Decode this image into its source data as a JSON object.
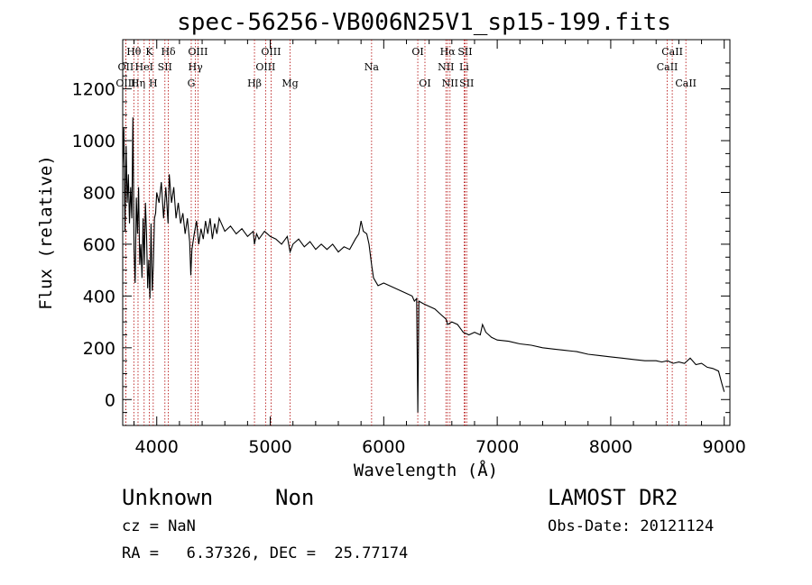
{
  "chart_data": {
    "type": "line",
    "title": "spec-56256-VB006N25V1_sp15-199.fits",
    "xlabel": "Wavelength (Å)",
    "ylabel": "Flux (relative)",
    "xlim": [
      3700,
      9050
    ],
    "ylim": [
      -100,
      1390
    ],
    "xticks": [
      4000,
      5000,
      6000,
      7000,
      8000,
      9000
    ],
    "yticks": [
      0,
      200,
      400,
      600,
      800,
      1000,
      1200
    ],
    "grid": false,
    "series": [
      {
        "values": [
          [
            3700,
            900
          ],
          [
            3710,
            1050
          ],
          [
            3720,
            650
          ],
          [
            3730,
            980
          ],
          [
            3740,
            760
          ],
          [
            3750,
            870
          ],
          [
            3760,
            680
          ],
          [
            3770,
            820
          ],
          [
            3780,
            700
          ],
          [
            3790,
            1090
          ],
          [
            3800,
            580
          ],
          [
            3810,
            450
          ],
          [
            3820,
            780
          ],
          [
            3830,
            640
          ],
          [
            3840,
            820
          ],
          [
            3850,
            520
          ],
          [
            3860,
            600
          ],
          [
            3870,
            470
          ],
          [
            3880,
            700
          ],
          [
            3890,
            520
          ],
          [
            3900,
            760
          ],
          [
            3910,
            640
          ],
          [
            3920,
            430
          ],
          [
            3930,
            540
          ],
          [
            3940,
            390
          ],
          [
            3950,
            680
          ],
          [
            3960,
            420
          ],
          [
            3970,
            520
          ],
          [
            3980,
            700
          ],
          [
            3990,
            720
          ],
          [
            4000,
            800
          ],
          [
            4020,
            760
          ],
          [
            4040,
            840
          ],
          [
            4060,
            700
          ],
          [
            4080,
            820
          ],
          [
            4100,
            680
          ],
          [
            4110,
            870
          ],
          [
            4130,
            760
          ],
          [
            4150,
            820
          ],
          [
            4170,
            700
          ],
          [
            4190,
            760
          ],
          [
            4210,
            680
          ],
          [
            4230,
            720
          ],
          [
            4250,
            640
          ],
          [
            4270,
            700
          ],
          [
            4290,
            610
          ],
          [
            4300,
            480
          ],
          [
            4310,
            580
          ],
          [
            4330,
            640
          ],
          [
            4350,
            690
          ],
          [
            4370,
            600
          ],
          [
            4390,
            660
          ],
          [
            4410,
            620
          ],
          [
            4430,
            690
          ],
          [
            4450,
            640
          ],
          [
            4470,
            700
          ],
          [
            4490,
            620
          ],
          [
            4510,
            680
          ],
          [
            4530,
            640
          ],
          [
            4550,
            700
          ],
          [
            4600,
            650
          ],
          [
            4650,
            670
          ],
          [
            4700,
            640
          ],
          [
            4750,
            660
          ],
          [
            4800,
            630
          ],
          [
            4850,
            650
          ],
          [
            4861,
            600
          ],
          [
            4880,
            640
          ],
          [
            4900,
            620
          ],
          [
            4950,
            650
          ],
          [
            5000,
            630
          ],
          [
            5050,
            620
          ],
          [
            5100,
            600
          ],
          [
            5150,
            630
          ],
          [
            5175,
            570
          ],
          [
            5200,
            600
          ],
          [
            5250,
            620
          ],
          [
            5300,
            590
          ],
          [
            5350,
            610
          ],
          [
            5400,
            580
          ],
          [
            5450,
            600
          ],
          [
            5500,
            580
          ],
          [
            5550,
            600
          ],
          [
            5600,
            570
          ],
          [
            5650,
            590
          ],
          [
            5700,
            580
          ],
          [
            5750,
            620
          ],
          [
            5780,
            640
          ],
          [
            5800,
            690
          ],
          [
            5820,
            650
          ],
          [
            5850,
            640
          ],
          [
            5870,
            600
          ],
          [
            5893,
            520
          ],
          [
            5910,
            470
          ],
          [
            5950,
            440
          ],
          [
            6000,
            450
          ],
          [
            6050,
            440
          ],
          [
            6100,
            430
          ],
          [
            6150,
            420
          ],
          [
            6200,
            410
          ],
          [
            6250,
            400
          ],
          [
            6270,
            380
          ],
          [
            6290,
            390
          ],
          [
            6300,
            -50
          ],
          [
            6310,
            380
          ],
          [
            6350,
            370
          ],
          [
            6400,
            360
          ],
          [
            6450,
            350
          ],
          [
            6500,
            330
          ],
          [
            6550,
            310
          ],
          [
            6563,
            290
          ],
          [
            6600,
            300
          ],
          [
            6650,
            290
          ],
          [
            6700,
            260
          ],
          [
            6750,
            250
          ],
          [
            6800,
            260
          ],
          [
            6850,
            250
          ],
          [
            6870,
            290
          ],
          [
            6900,
            260
          ],
          [
            6950,
            240
          ],
          [
            7000,
            230
          ],
          [
            7100,
            225
          ],
          [
            7200,
            215
          ],
          [
            7300,
            210
          ],
          [
            7400,
            200
          ],
          [
            7500,
            195
          ],
          [
            7600,
            190
          ],
          [
            7700,
            185
          ],
          [
            7800,
            175
          ],
          [
            7900,
            170
          ],
          [
            8000,
            165
          ],
          [
            8100,
            160
          ],
          [
            8200,
            155
          ],
          [
            8300,
            150
          ],
          [
            8400,
            150
          ],
          [
            8450,
            145
          ],
          [
            8500,
            150
          ],
          [
            8550,
            140
          ],
          [
            8600,
            145
          ],
          [
            8650,
            140
          ],
          [
            8700,
            160
          ],
          [
            8750,
            135
          ],
          [
            8800,
            140
          ],
          [
            8850,
            125
          ],
          [
            8900,
            120
          ],
          [
            8950,
            110
          ],
          [
            8980,
            60
          ],
          [
            9000,
            30
          ]
        ]
      }
    ],
    "lines": [
      {
        "label": "Hθ",
        "x": 3798,
        "row": 0,
        "align": "middle"
      },
      {
        "label": "OII",
        "x": 3727,
        "row": 1,
        "align": "middle"
      },
      {
        "label": "OIII",
        "x": 3727,
        "row": 2,
        "align": "middle"
      },
      {
        "label": "HeI",
        "x": 3889,
        "row": 1,
        "align": "middle"
      },
      {
        "label": "Hη",
        "x": 3835,
        "row": 2,
        "align": "middle"
      },
      {
        "label": "K",
        "x": 3934,
        "row": 0,
        "align": "middle"
      },
      {
        "label": "SII",
        "x": 4072,
        "row": 1,
        "align": "middle"
      },
      {
        "label": "H",
        "x": 3969,
        "row": 2,
        "align": "middle"
      },
      {
        "label": "Hδ",
        "x": 4102,
        "row": 0,
        "align": "middle"
      },
      {
        "label": "OIII",
        "x": 4363,
        "row": 0,
        "align": "middle"
      },
      {
        "label": "Hγ",
        "x": 4341,
        "row": 1,
        "align": "middle"
      },
      {
        "label": "G",
        "x": 4304,
        "row": 2,
        "align": "middle"
      },
      {
        "label": "Hβ",
        "x": 4861,
        "row": 2,
        "align": "middle"
      },
      {
        "label": "OIII",
        "x": 5007,
        "row": 0,
        "align": "middle"
      },
      {
        "label": "OIII",
        "x": 4959,
        "row": 1,
        "align": "middle"
      },
      {
        "label": "Mg",
        "x": 5175,
        "row": 2,
        "align": "middle"
      },
      {
        "label": "Na",
        "x": 5893,
        "row": 1,
        "align": "middle"
      },
      {
        "label": "OI",
        "x": 6300,
        "row": 0,
        "align": "middle"
      },
      {
        "label": "OI",
        "x": 6363,
        "row": 2,
        "align": "middle"
      },
      {
        "label": "Hα",
        "x": 6563,
        "row": 0,
        "align": "middle"
      },
      {
        "label": "SII",
        "x": 6717,
        "row": 0,
        "align": "middle"
      },
      {
        "label": "NII",
        "x": 6548,
        "row": 1,
        "align": "middle"
      },
      {
        "label": "Li",
        "x": 6708,
        "row": 1,
        "align": "middle"
      },
      {
        "label": "NII",
        "x": 6584,
        "row": 2,
        "align": "middle"
      },
      {
        "label": "SII",
        "x": 6731,
        "row": 2,
        "align": "middle"
      },
      {
        "label": "CaII",
        "x": 8542,
        "row": 0,
        "align": "middle"
      },
      {
        "label": "CaII",
        "x": 8498,
        "row": 1,
        "align": "middle"
      },
      {
        "label": "CaII",
        "x": 8662,
        "row": 2,
        "align": "middle"
      }
    ]
  },
  "info": {
    "object_class": "Unknown",
    "object_subclass": "Non",
    "survey": "LAMOST DR2",
    "cz": "cz = NaN",
    "obs_date": "Obs-Date: 20121124",
    "radec": "RA =   6.37326, DEC =  25.77174"
  },
  "colors": {
    "spectrum": "#000000",
    "line_marker": "#b00000",
    "axis": "#000000"
  }
}
